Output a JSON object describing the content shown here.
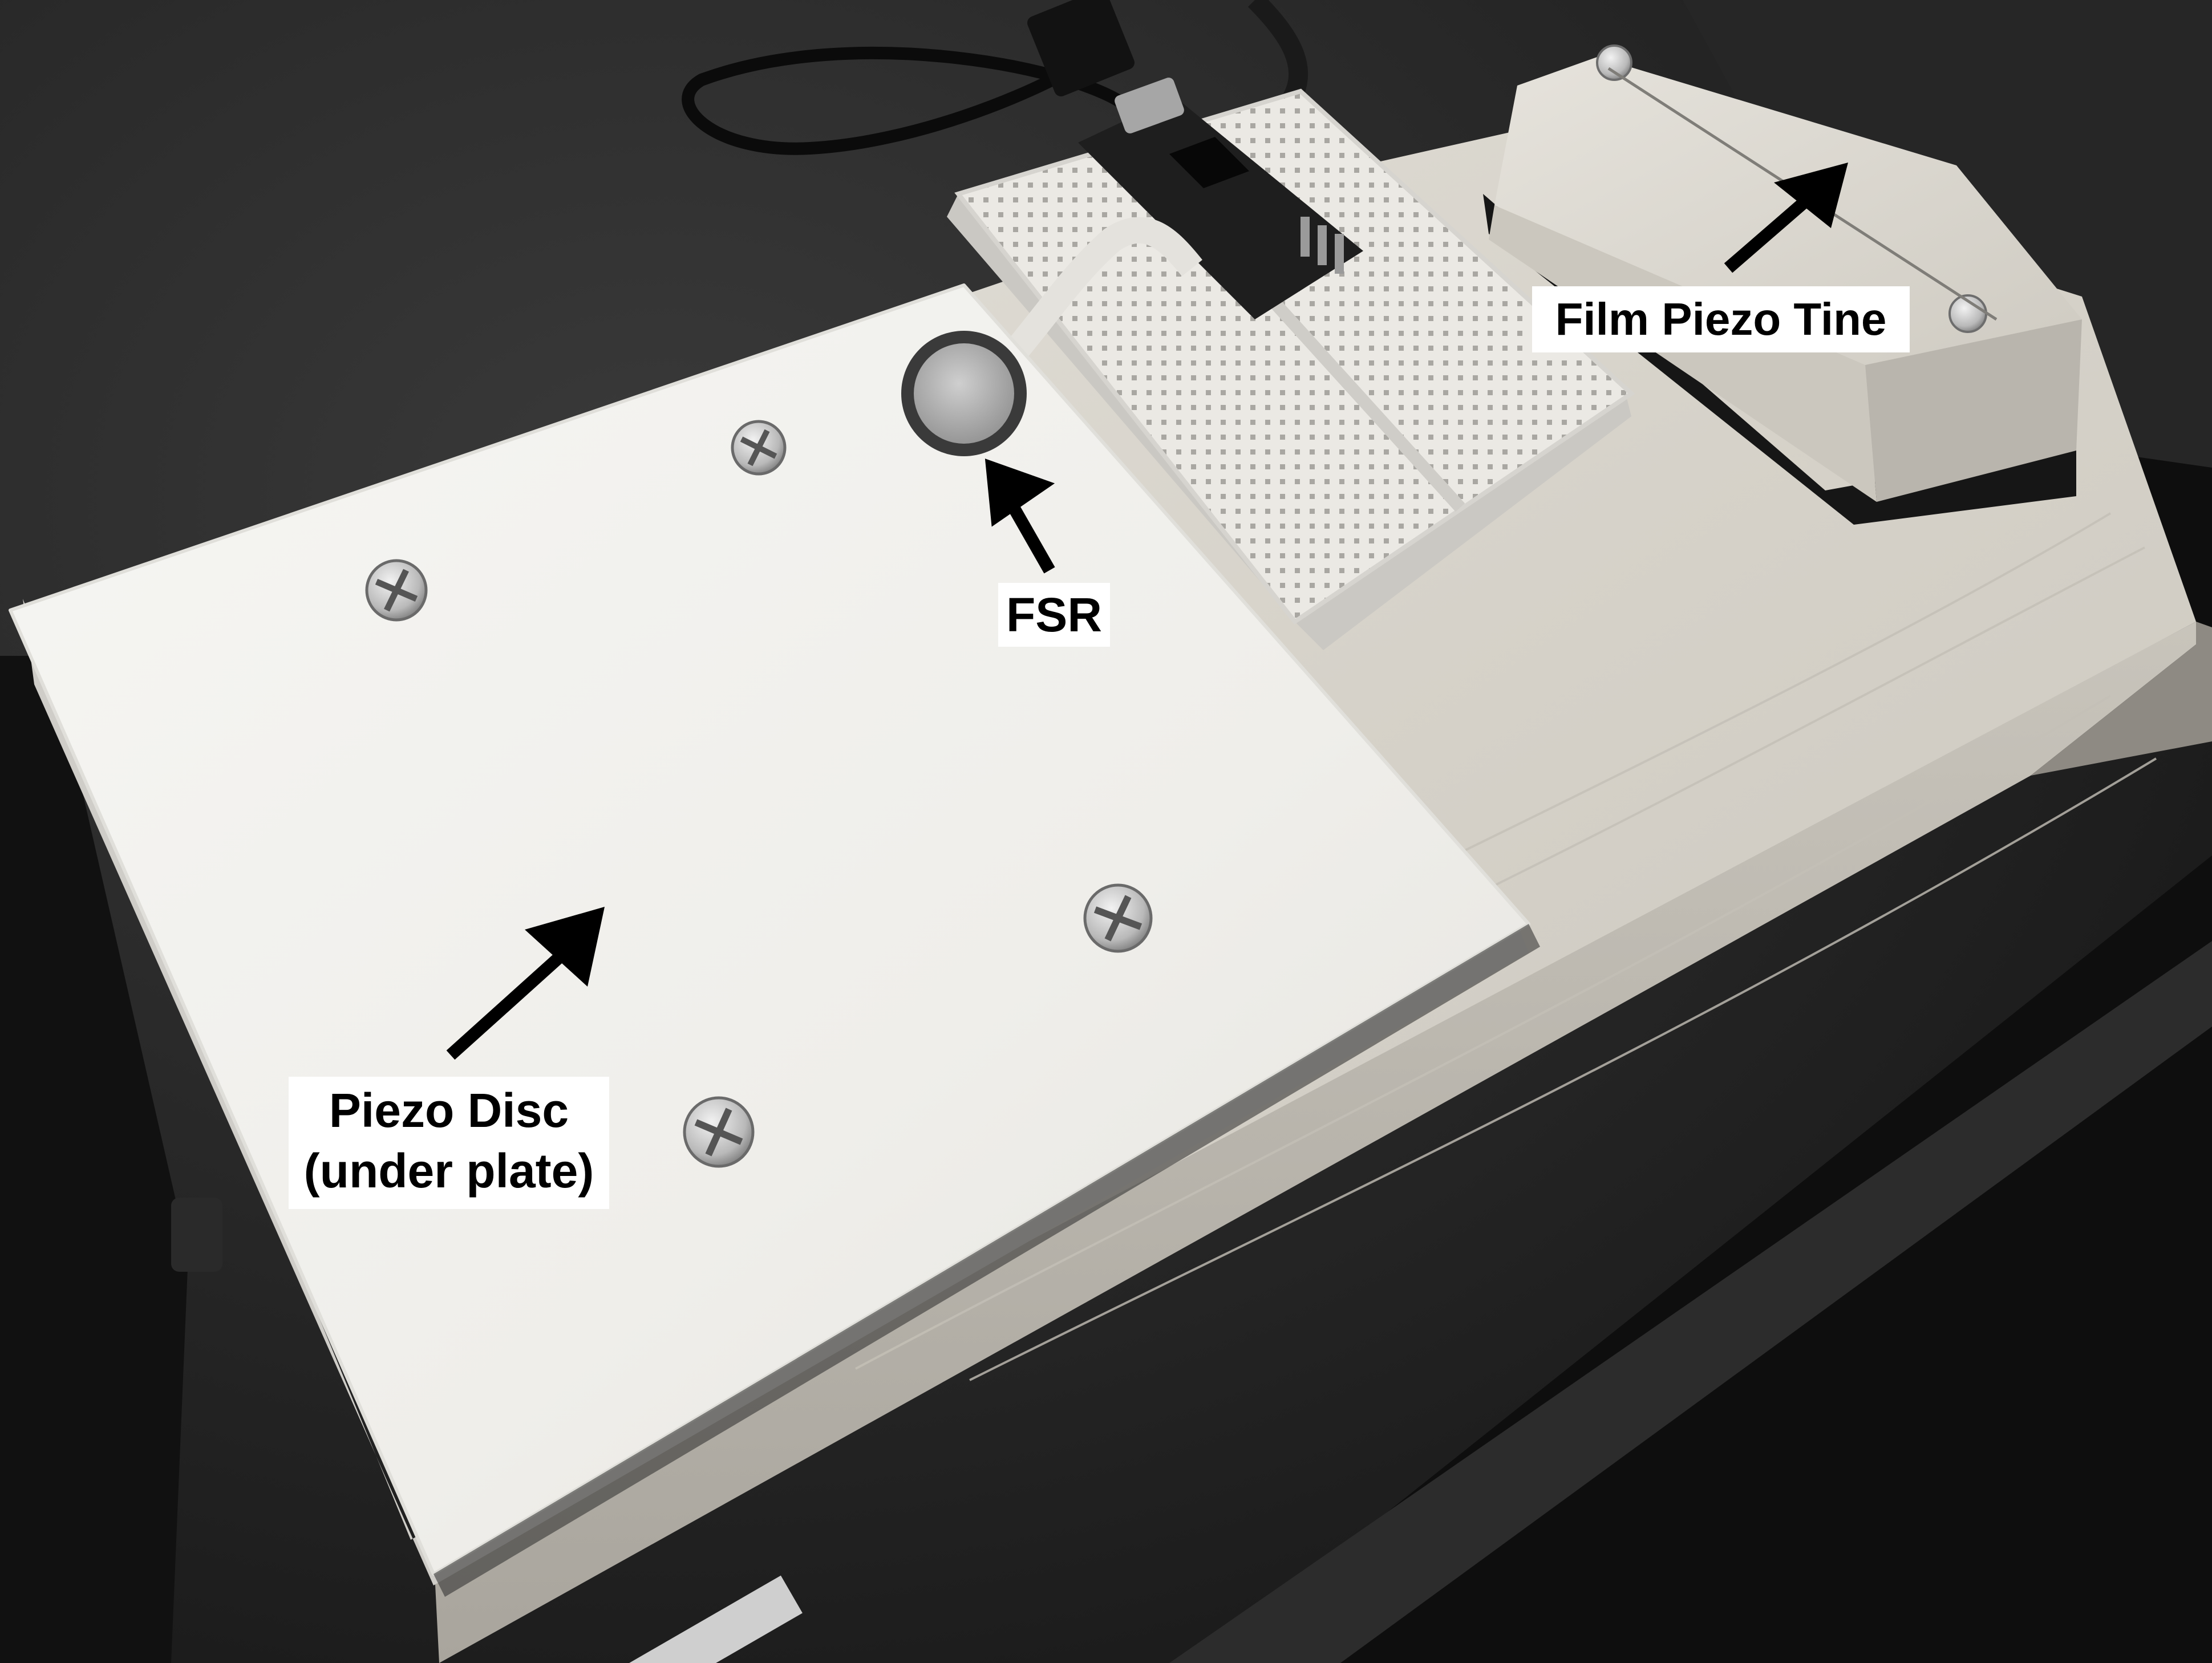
{
  "photo": {
    "subject": "sensor test rig"
  },
  "labels": {
    "fsr": "FSR",
    "film_piezo_tine": "Film Piezo Tine",
    "piezo_disc_line1": "Piezo Disc",
    "piezo_disc_line2": "(under plate)"
  },
  "colors": {
    "background": "#1c1c1c",
    "wood": "#d9d5cc",
    "plate": "#f1f0ec",
    "breadboard": "#e9e7e2",
    "label_bg": "#ffffff",
    "label_text": "#000000",
    "arrow": "#000000"
  }
}
